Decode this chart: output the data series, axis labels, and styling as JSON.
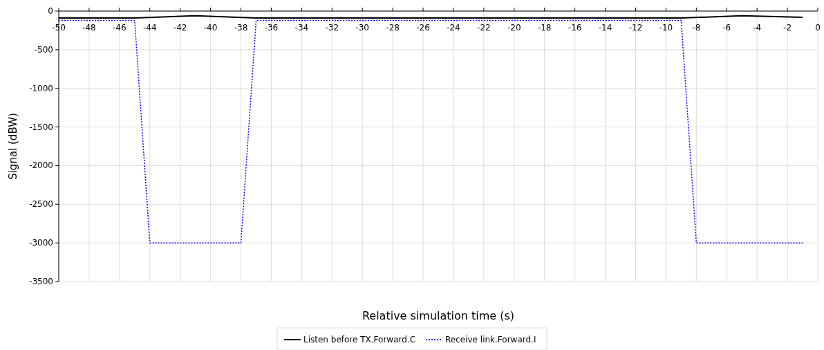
{
  "chart_data": {
    "type": "line",
    "xlabel": "Relative simulation time (s)",
    "ylabel": "Signal (dBW)",
    "xlim": [
      -50,
      0
    ],
    "xticks": [
      -50,
      -48,
      -46,
      -44,
      -42,
      -40,
      -38,
      -36,
      -34,
      -32,
      -30,
      -28,
      -26,
      -24,
      -22,
      -20,
      -18,
      -16,
      -14,
      -12,
      -10,
      -8,
      -6,
      -4,
      -2,
      0
    ],
    "ylim": [
      -3500,
      0
    ],
    "yticks": [
      -3500,
      -3000,
      -2500,
      -2000,
      -1500,
      -1000,
      -500,
      0
    ],
    "grid": true,
    "legend": "bottom",
    "marker": "none",
    "series": [
      {
        "name": "Listen before TX.Forward.C",
        "color": "#000000",
        "line_style": "solid",
        "x": [
          -50,
          -45,
          -41,
          -37,
          -9,
          -5,
          -1
        ],
        "values": [
          -90,
          -90,
          -60,
          -90,
          -90,
          -60,
          -80
        ]
      },
      {
        "name": "Receive link.Forward.I",
        "color": "#0000ff",
        "line_style": "dotted",
        "x": [
          -50,
          -45,
          -44,
          -38,
          -37,
          -9,
          -8,
          -1
        ],
        "values": [
          -120,
          -120,
          -3000,
          -3000,
          -120,
          -120,
          -3000,
          -3000
        ]
      }
    ]
  }
}
